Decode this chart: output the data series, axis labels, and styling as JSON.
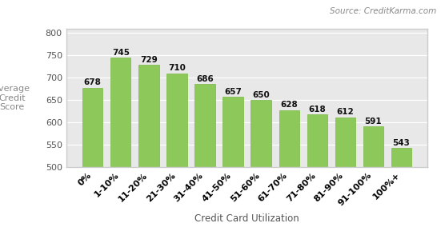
{
  "categories": [
    "0%",
    "1-10%",
    "11-20%",
    "21-30%",
    "31-40%",
    "41-50%",
    "51-60%",
    "61-70%",
    "71-80%",
    "81-90%",
    "91-100%",
    "100%+"
  ],
  "values": [
    678,
    745,
    729,
    710,
    686,
    657,
    650,
    628,
    618,
    612,
    591,
    543
  ],
  "bar_color": "#8dc85a",
  "bar_edge_color": "#7ab845",
  "ylabel": "Average\nCredit\nScore",
  "xlabel": "Credit Card Utilization",
  "source_text": "Source: CreditKarma.com",
  "ylim": [
    500,
    810
  ],
  "yticks": [
    500,
    550,
    600,
    650,
    700,
    750,
    800
  ],
  "fig_bg_color": "#ffffff",
  "plot_bg_color": "#e8e8e8",
  "label_fontsize": 8,
  "tick_fontsize": 8,
  "bar_label_fontsize": 7.5,
  "source_fontsize": 7.5,
  "xlabel_fontsize": 8.5
}
